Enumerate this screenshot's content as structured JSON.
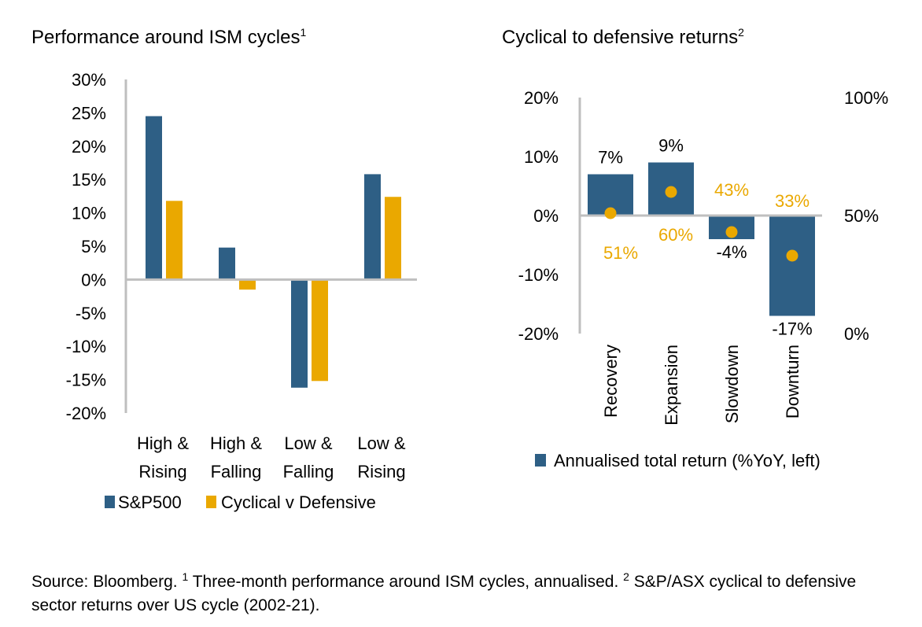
{
  "colors": {
    "blue": "#2E5F85",
    "gold": "#EAA800",
    "axis": "#BFBFBF"
  },
  "chart_data": [
    {
      "type": "bar",
      "title": "Performance around ISM cycles",
      "title_sup": "1",
      "categories": [
        [
          "High &",
          "Rising"
        ],
        [
          "High &",
          "Falling"
        ],
        [
          "Low &",
          "Falling"
        ],
        [
          "Low &",
          "Rising"
        ]
      ],
      "ylim": [
        -20,
        30
      ],
      "yticks": [
        "30%",
        "25%",
        "20%",
        "15%",
        "10%",
        "5%",
        "0%",
        "-5%",
        "-10%",
        "-15%",
        "-20%"
      ],
      "series": [
        {
          "name": "S&P500",
          "color": "#2E5F85",
          "values": [
            24.5,
            4.8,
            -16.2,
            15.8
          ]
        },
        {
          "name": "Cyclical v Defensive",
          "color": "#EAA800",
          "values": [
            11.8,
            -1.5,
            -15.2,
            12.4
          ]
        }
      ],
      "legend": "bottom"
    },
    {
      "type": "bar",
      "title": "Cyclical to defensive returns",
      "title_sup": "2",
      "categories": [
        "Recovery",
        "Expansion",
        "Slowdown",
        "Downturn"
      ],
      "ylim_left": [
        -20,
        20
      ],
      "yticks_left": [
        "20%",
        "10%",
        "0%",
        "-10%",
        "-20%"
      ],
      "ylim_right": [
        0,
        100
      ],
      "yticks_right": [
        "100%",
        "50%",
        "0%"
      ],
      "series": [
        {
          "name": "Annualised total return (%YoY, left)",
          "color": "#2E5F85",
          "values": [
            7,
            9,
            -4,
            -17
          ],
          "labels": [
            "7%",
            "9%",
            "-4%",
            "-17%"
          ]
        },
        {
          "color": "#EAA800",
          "type": "scatter",
          "axis": "right",
          "values": [
            51,
            60,
            43,
            33
          ],
          "labels": [
            "51%",
            "60%",
            "43%",
            "33%"
          ]
        }
      ],
      "legend": "bottom"
    }
  ],
  "footnote": {
    "source": "Source: Bloomberg. ",
    "sup1": "1",
    "note1": " Three-month performance around ISM cycles, annualised. ",
    "sup2": "2",
    "note2": " S&P/ASX cyclical to defensive sector returns over US cycle (2002-21)."
  }
}
